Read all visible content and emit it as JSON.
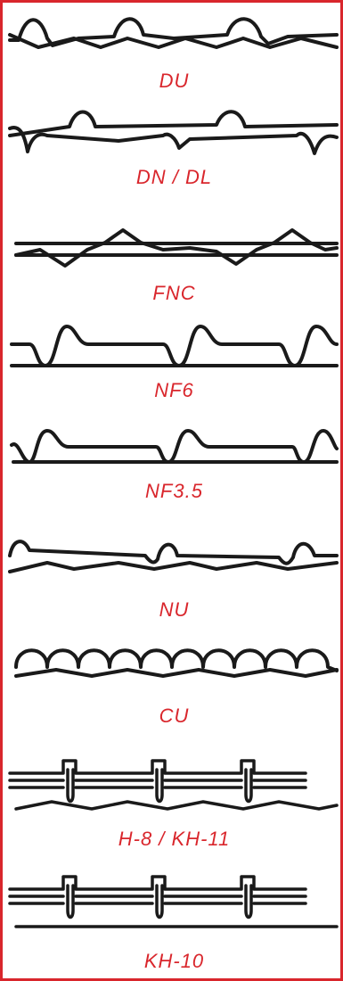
{
  "colors": {
    "border": "#d9262c",
    "label": "#d9262c",
    "line": "#1a1a1a",
    "background": "#ffffff"
  },
  "profiles": [
    {
      "label": "DU"
    },
    {
      "label": "DN / DL"
    },
    {
      "label": "FNC"
    },
    {
      "label": "NF6"
    },
    {
      "label": "NF3.5"
    },
    {
      "label": "NU"
    },
    {
      "label": "CU"
    },
    {
      "label": "H-8 / KH-11"
    },
    {
      "label": "KH-10"
    }
  ]
}
